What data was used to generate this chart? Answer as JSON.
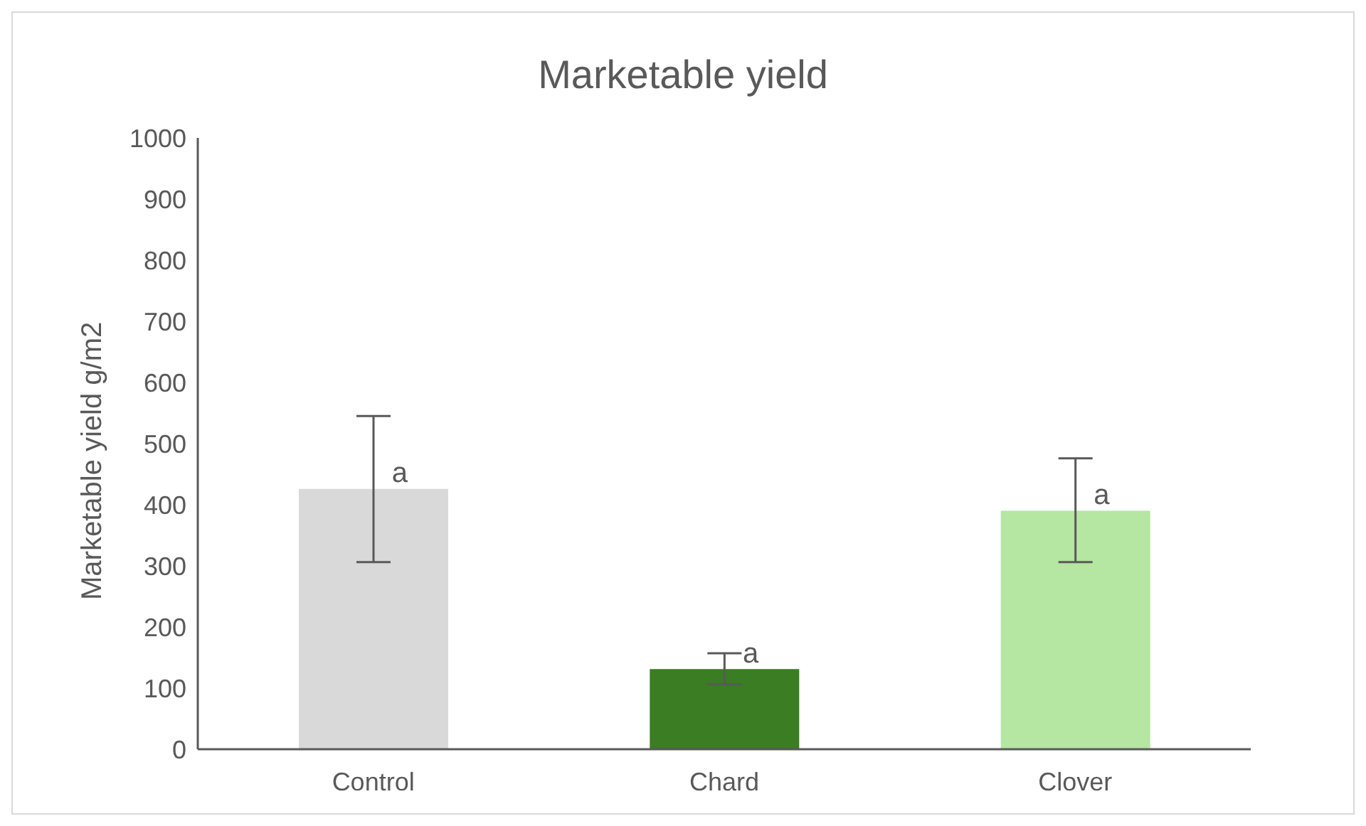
{
  "chart_data": {
    "type": "bar",
    "title": "Marketable yield",
    "ylabel": "Marketable yield g/m2",
    "categories": [
      "Control",
      "Chard",
      "Clover"
    ],
    "values": [
      426,
      131,
      390
    ],
    "colors": [
      "#d9d9d9",
      "#3a7d22",
      "#b5e6a2"
    ],
    "errors": [
      [
        306,
        545
      ],
      [
        106,
        157
      ],
      [
        306,
        476
      ]
    ],
    "ylim": [
      0,
      1000
    ],
    "yticks": [
      0,
      100,
      200,
      300,
      400,
      500,
      600,
      700,
      800,
      900,
      1000
    ],
    "grid": false,
    "legend": false,
    "annotations": [
      {
        "text": "a",
        "x": "Control",
        "y": 426
      },
      {
        "text": "a",
        "x": "Chard",
        "y": 131
      },
      {
        "text": "a",
        "x": "Clover",
        "y": 390
      }
    ]
  }
}
